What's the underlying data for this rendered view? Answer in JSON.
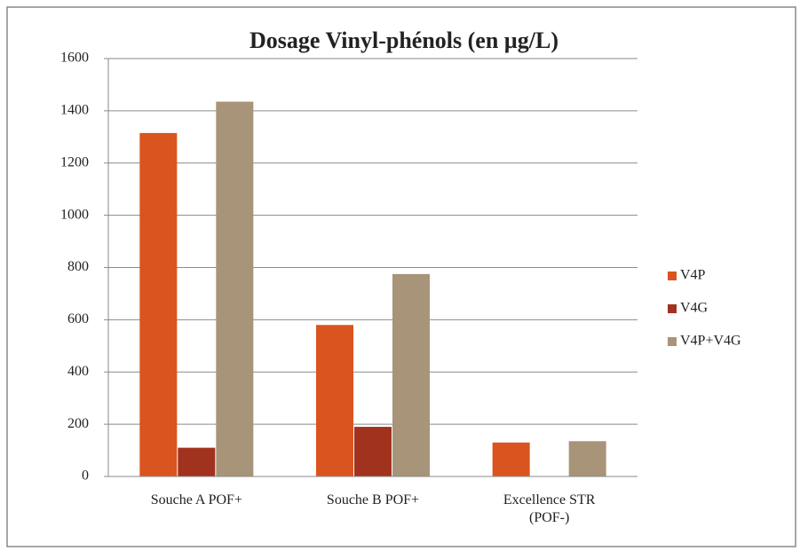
{
  "chart_data": {
    "type": "bar",
    "title": "Dosage Vinyl-phénols (en µg/L)",
    "categories": [
      "Souche A POF+",
      "Souche B POF+",
      "Excellence STR (POF-)"
    ],
    "series": [
      {
        "name": "V4P",
        "color": "#d9541e",
        "values": [
          1315,
          580,
          130
        ]
      },
      {
        "name": "V4G",
        "color": "#a0321e",
        "values": [
          110,
          190,
          0
        ]
      },
      {
        "name": "V4P+V4G",
        "color": "#a89478",
        "values": [
          1435,
          775,
          135
        ]
      }
    ],
    "ylim": [
      0,
      1600
    ],
    "yticks": [
      0,
      200,
      400,
      600,
      800,
      1000,
      1200,
      1400,
      1600
    ],
    "grid": true,
    "legend": "right"
  }
}
